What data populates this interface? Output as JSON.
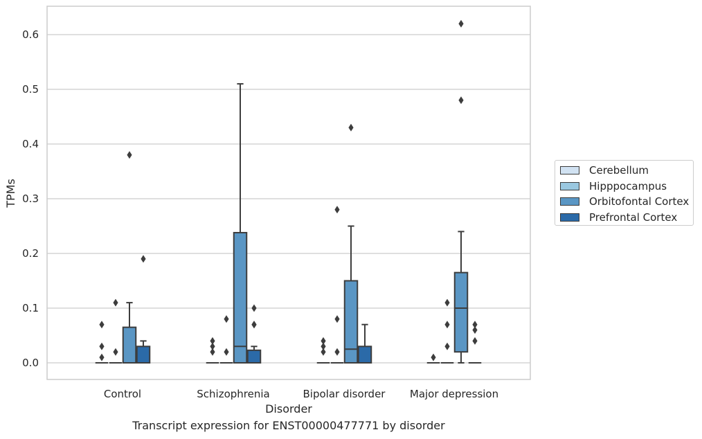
{
  "caption": "Transcript expression for ENST00000477771 by disorder",
  "chart_data": {
    "type": "box",
    "xlabel": "Disorder",
    "ylabel": "TPMs",
    "ylim": [
      -0.03,
      0.65
    ],
    "yticks": [
      "0.0",
      "0.1",
      "0.2",
      "0.3",
      "0.4",
      "0.5",
      "0.6"
    ],
    "ytick_values": [
      0,
      0.1,
      0.2,
      0.3,
      0.4,
      0.5,
      0.6
    ],
    "grid": "horizontal",
    "legend_position": "right",
    "categories": [
      "Control",
      "Schizophrenia",
      "Bipolar disorder",
      "Major depression"
    ],
    "series": [
      {
        "name": "Cerebellum",
        "color": "#d1e2f2",
        "boxes": [
          {
            "q1": 0,
            "median": 0,
            "q3": 0,
            "whisker_low": 0,
            "whisker_high": 0,
            "outliers": [
              0.07,
              0.03,
              0.01
            ]
          },
          {
            "q1": 0,
            "median": 0,
            "q3": 0,
            "whisker_low": 0,
            "whisker_high": 0,
            "outliers": [
              0.04,
              0.03,
              0.02
            ]
          },
          {
            "q1": 0,
            "median": 0,
            "q3": 0,
            "whisker_low": 0,
            "whisker_high": 0,
            "outliers": [
              0.04,
              0.03,
              0.02
            ]
          },
          {
            "q1": 0,
            "median": 0,
            "q3": 0,
            "whisker_low": 0,
            "whisker_high": 0,
            "outliers": [
              0.01
            ]
          }
        ]
      },
      {
        "name": "Hipppocampus",
        "color": "#9ac8e0",
        "boxes": [
          {
            "q1": 0,
            "median": 0,
            "q3": 0,
            "whisker_low": 0,
            "whisker_high": 0,
            "outliers": [
              0.11,
              0.02
            ]
          },
          {
            "q1": 0,
            "median": 0,
            "q3": 0,
            "whisker_low": 0,
            "whisker_high": 0,
            "outliers": [
              0.08,
              0.02
            ]
          },
          {
            "q1": 0,
            "median": 0,
            "q3": 0,
            "whisker_low": 0,
            "whisker_high": 0,
            "outliers": [
              0.28,
              0.08,
              0.02
            ]
          },
          {
            "q1": 0,
            "median": 0,
            "q3": 0,
            "whisker_low": 0,
            "whisker_high": 0,
            "outliers": [
              0.11,
              0.07,
              0.03
            ]
          }
        ]
      },
      {
        "name": "Orbitofontal Cortex",
        "color": "#5a96c4",
        "boxes": [
          {
            "q1": 0,
            "median": 0,
            "q3": 0.065,
            "whisker_low": 0,
            "whisker_high": 0.11,
            "outliers": [
              0.38
            ]
          },
          {
            "q1": 0,
            "median": 0.03,
            "q3": 0.238,
            "whisker_low": 0,
            "whisker_high": 0.51,
            "outliers": []
          },
          {
            "q1": 0,
            "median": 0.025,
            "q3": 0.15,
            "whisker_low": 0,
            "whisker_high": 0.25,
            "outliers": [
              0.43
            ]
          },
          {
            "q1": 0.02,
            "median": 0.1,
            "q3": 0.165,
            "whisker_low": 0,
            "whisker_high": 0.24,
            "outliers": [
              0.62,
              0.48
            ]
          }
        ]
      },
      {
        "name": "Prefrontal Cortex",
        "color": "#2b6aa8",
        "boxes": [
          {
            "q1": 0,
            "median": 0,
            "q3": 0.03,
            "whisker_low": 0,
            "whisker_high": 0.04,
            "outliers": [
              0.19
            ]
          },
          {
            "q1": 0,
            "median": 0,
            "q3": 0.023,
            "whisker_low": 0,
            "whisker_high": 0.03,
            "outliers": [
              0.1,
              0.07,
              0.07
            ]
          },
          {
            "q1": 0,
            "median": 0,
            "q3": 0.03,
            "whisker_low": 0,
            "whisker_high": 0.07,
            "outliers": []
          },
          {
            "q1": 0,
            "median": 0,
            "q3": 0,
            "whisker_low": 0,
            "whisker_high": 0,
            "outliers": [
              0.07,
              0.06,
              0.04
            ]
          }
        ]
      }
    ]
  }
}
